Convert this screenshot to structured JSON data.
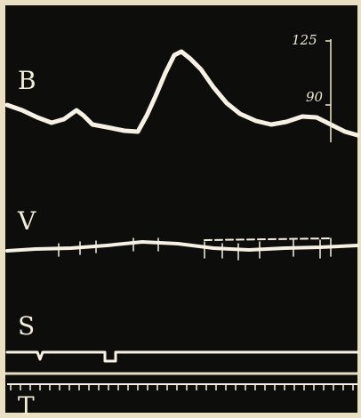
{
  "labels": {
    "b": "B",
    "v": "V",
    "s": "S",
    "t": "T"
  },
  "scale": {
    "top": "125",
    "bottom": "90"
  }
}
